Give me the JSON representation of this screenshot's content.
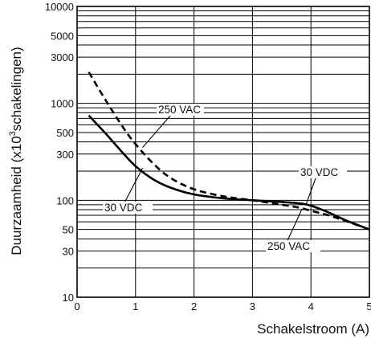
{
  "chart_data": {
    "type": "line",
    "xlabel": "Schakelstroom (A)",
    "ylabel_main": "Duurzaamheid (x10",
    "ylabel_exp": "3",
    "ylabel_tail": "schakelingen)",
    "xlim": [
      0,
      5
    ],
    "ylim": [
      10,
      10000
    ],
    "y_scale": "log",
    "grid": true,
    "x_ticks": [
      {
        "value": 0,
        "label": "0"
      },
      {
        "value": 1,
        "label": "1"
      },
      {
        "value": 2,
        "label": "2"
      },
      {
        "value": 3,
        "label": "3"
      },
      {
        "value": 4,
        "label": "4"
      },
      {
        "value": 5,
        "label": "5"
      }
    ],
    "y_ticks": [
      {
        "value": 10,
        "label": "10"
      },
      {
        "value": 30,
        "label": "30"
      },
      {
        "value": 50,
        "label": "50"
      },
      {
        "value": 100,
        "label": "100"
      },
      {
        "value": 300,
        "label": "300"
      },
      {
        "value": 500,
        "label": "500"
      },
      {
        "value": 1000,
        "label": "1000"
      },
      {
        "value": 3000,
        "label": "3000"
      },
      {
        "value": 5000,
        "label": "5000"
      },
      {
        "value": 10000,
        "label": "10000"
      }
    ],
    "series": [
      {
        "style": "solid",
        "x": [
          0.2,
          0.5,
          0.8,
          1.0,
          1.3,
          1.6,
          2.0,
          2.5,
          3.0,
          3.5,
          3.8,
          4.0,
          4.3,
          4.6,
          5.0
        ],
        "y": [
          750,
          480,
          300,
          225,
          165,
          135,
          115,
          105,
          100,
          96,
          93,
          88,
          75,
          62,
          50
        ]
      },
      {
        "style": "dashed",
        "x": [
          0.2,
          0.5,
          0.8,
          1.0,
          1.3,
          1.6,
          2.0,
          2.5,
          3.0,
          3.5,
          3.8,
          4.0,
          4.3,
          4.6,
          5.0
        ],
        "y": [
          2100,
          1050,
          550,
          380,
          240,
          170,
          130,
          110,
          100,
          90,
          84,
          78,
          70,
          61,
          50
        ]
      }
    ],
    "annotations": [
      {
        "text": "250 VAC",
        "target_x": 1.12,
        "target_y": 350
      },
      {
        "text": "30 VDC",
        "target_x": 1.12,
        "target_y": 215
      },
      {
        "text": "30 VDC",
        "target_x": 3.92,
        "target_y": 92
      },
      {
        "text": "250 VAC",
        "target_x": 3.85,
        "target_y": 82
      }
    ]
  }
}
